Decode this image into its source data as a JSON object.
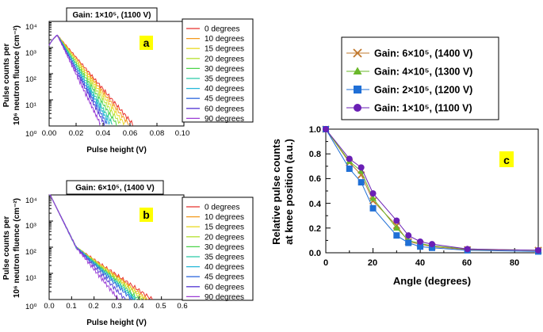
{
  "chart_data": [
    {
      "panel": "a",
      "type": "line",
      "title": "Gain: 1×10⁵, (1100 V)",
      "xlabel": "Pulse height (V)",
      "ylabel_line1": "Pulse counts per",
      "ylabel_line2": "10⁶ neutron fluence (cm⁻²)",
      "xlim": [
        0,
        0.1
      ],
      "yscale": "log",
      "ylim": [
        1,
        10000
      ],
      "x_ticks": [
        "0.00",
        "0.02",
        "0.04",
        "0.06",
        "0.08",
        "0.10"
      ],
      "y_ticks": [
        "10⁰",
        "10¹",
        "10²",
        "10³",
        "10⁴"
      ],
      "peak": {
        "x": 0.006,
        "y": 3000
      },
      "series": [
        {
          "name": "0 degrees",
          "color": "#e8322c",
          "x_end": 0.062
        },
        {
          "name": "10 degrees",
          "color": "#f39a1c",
          "x_end": 0.059
        },
        {
          "name": "15 degrees",
          "color": "#e9dc2e",
          "x_end": 0.056
        },
        {
          "name": "20 degrees",
          "color": "#b8e23a",
          "x_end": 0.053
        },
        {
          "name": "30 degrees",
          "color": "#4bd44a",
          "x_end": 0.05
        },
        {
          "name": "35 degrees",
          "color": "#2bc9a6",
          "x_end": 0.047
        },
        {
          "name": "40 degrees",
          "color": "#24b8d8",
          "x_end": 0.045
        },
        {
          "name": "45 degrees",
          "color": "#3a6fe0",
          "x_end": 0.043
        },
        {
          "name": "60 degrees",
          "color": "#5a3ed6",
          "x_end": 0.041
        },
        {
          "name": "90 degrees",
          "color": "#9b3ed6",
          "x_end": 0.038
        }
      ]
    },
    {
      "panel": "b",
      "type": "line",
      "title": "Gain: 6×10⁵, (1400 V)",
      "xlabel": "Pulse height (V)",
      "ylabel_line1": "Pulse counts per",
      "ylabel_line2": "10⁶ neutron fluence (cm⁻²)",
      "xlim": [
        0,
        0.6
      ],
      "yscale": "log",
      "ylim": [
        1,
        10000
      ],
      "x_ticks": [
        "0.0",
        "0.1",
        "0.2",
        "0.3",
        "0.4",
        "0.5",
        "0.6"
      ],
      "y_ticks": [
        "10⁰",
        "10¹",
        "10²",
        "10³",
        "10⁴"
      ],
      "knee": {
        "x": 0.12,
        "y": 100
      },
      "series": [
        {
          "name": "0 degrees",
          "color": "#e8322c",
          "x_end": 0.46
        },
        {
          "name": "10 degrees",
          "color": "#f39a1c",
          "x_end": 0.44
        },
        {
          "name": "15 degrees",
          "color": "#e9dc2e",
          "x_end": 0.43
        },
        {
          "name": "20 degrees",
          "color": "#b8e23a",
          "x_end": 0.42
        },
        {
          "name": "30 degrees",
          "color": "#4bd44a",
          "x_end": 0.4
        },
        {
          "name": "35 degrees",
          "color": "#2bc9a6",
          "x_end": 0.39
        },
        {
          "name": "40 degrees",
          "color": "#24b8d8",
          "x_end": 0.38
        },
        {
          "name": "45 degrees",
          "color": "#3a6fe0",
          "x_end": 0.37
        },
        {
          "name": "60 degrees",
          "color": "#5a3ed6",
          "x_end": 0.34
        },
        {
          "name": "90 degrees",
          "color": "#9b3ed6",
          "x_end": 0.31
        }
      ]
    },
    {
      "panel": "c",
      "type": "line",
      "title": "",
      "xlabel": "Angle (degrees)",
      "ylabel_line1": "Relative pulse counts",
      "ylabel_line2": "at knee position (a.u.)",
      "xlim": [
        0,
        90
      ],
      "ylim": [
        0,
        1.0
      ],
      "x_ticks": [
        "0",
        "20",
        "40",
        "60",
        "80"
      ],
      "y_ticks": [
        "0.0",
        "0.2",
        "0.4",
        "0.6",
        "0.8",
        "1.0"
      ],
      "x": [
        0,
        10,
        15,
        20,
        30,
        35,
        40,
        45,
        60,
        90
      ],
      "series": [
        {
          "name": "Gain: 6×10⁵, (1400 V)",
          "marker": "x",
          "color": "#c0782e",
          "values": [
            1.0,
            0.73,
            0.63,
            0.42,
            0.22,
            0.09,
            0.07,
            0.05,
            0.025,
            0.02
          ]
        },
        {
          "name": "Gain: 4×10⁵, (1300 V)",
          "marker": "triangle",
          "color": "#6ab82a",
          "values": [
            1.0,
            0.74,
            0.66,
            0.44,
            0.2,
            0.1,
            0.075,
            0.055,
            0.03,
            0.02
          ]
        },
        {
          "name": "Gain: 2×10⁵, (1200 V)",
          "marker": "square",
          "color": "#1f6fd6",
          "values": [
            1.0,
            0.68,
            0.57,
            0.36,
            0.14,
            0.08,
            0.05,
            0.04,
            0.02,
            0.01
          ]
        },
        {
          "name": "Gain: 1×10⁵, (1100 V)",
          "marker": "circle",
          "color": "#6a1fb5",
          "values": [
            1.0,
            0.76,
            0.69,
            0.48,
            0.26,
            0.14,
            0.09,
            0.07,
            0.03,
            0.02
          ]
        }
      ]
    }
  ],
  "badges": {
    "a": "a",
    "b": "b",
    "c": "c"
  },
  "badge_color": "#ffff00"
}
